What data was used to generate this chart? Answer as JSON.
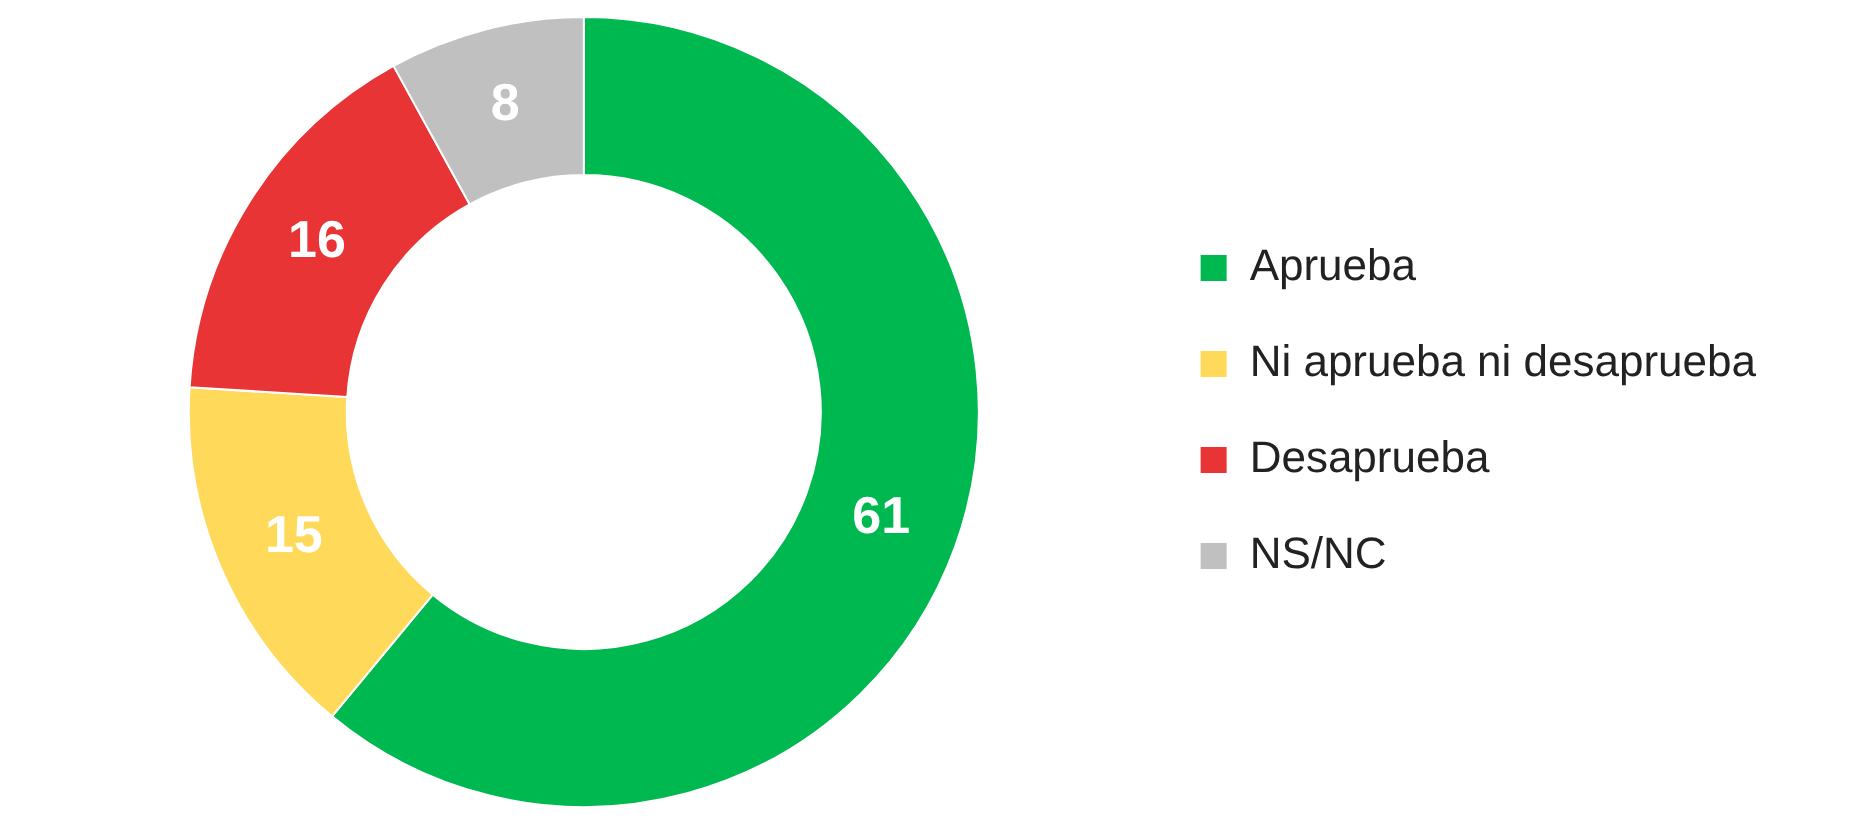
{
  "chart_data": {
    "type": "donut",
    "categories": [
      "Aprueba",
      "Ni aprueba ni desaprueba",
      "Desaprueba",
      "NS/NC"
    ],
    "values": [
      61,
      15,
      16,
      8
    ],
    "colors": [
      "#00b850",
      "#ffd95a",
      "#e83434",
      "#c0c0c0"
    ],
    "data_labels": true,
    "legend": "right"
  }
}
